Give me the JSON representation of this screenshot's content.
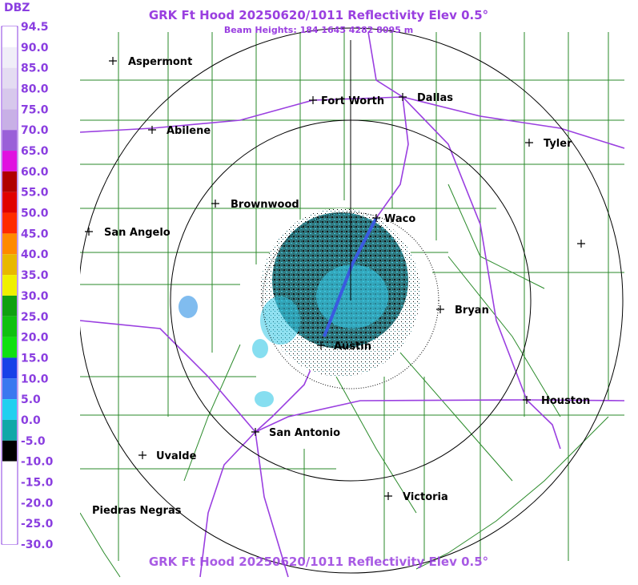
{
  "header": {
    "title": "GRK Ft Hood 20250620/1011 Reflectivity Elev 0.5°",
    "subtitle": "Beam Heights: 184 1645 4282 8095 m"
  },
  "legend": {
    "title": "DBZ",
    "labels": [
      "94.5",
      "90.0",
      "85.0",
      "80.0",
      "75.0",
      "70.0",
      "65.0",
      "60.0",
      "55.0",
      "50.0",
      "45.0",
      "40.0",
      "35.0",
      "30.0",
      "25.0",
      "20.0",
      "15.0",
      "10.0",
      "5.0",
      "0.0",
      "-5.0",
      "-10.0",
      "-15.0",
      "-20.0",
      "-25.0",
      "-30.0"
    ]
  },
  "cities": [
    "Aspermont",
    "Fort Worth",
    "Dallas",
    "Abilene",
    "Tyler",
    "Brownwood",
    "Waco",
    "San Angelo",
    "Bryan",
    "Austin",
    "Houston",
    "San Antonio",
    "Uvalde",
    "Victoria",
    "Piedras Negras"
  ],
  "footer": {
    "title": "GRK Ft Hood 20250620/1011 Reflectivity Elev 0.5°"
  }
}
